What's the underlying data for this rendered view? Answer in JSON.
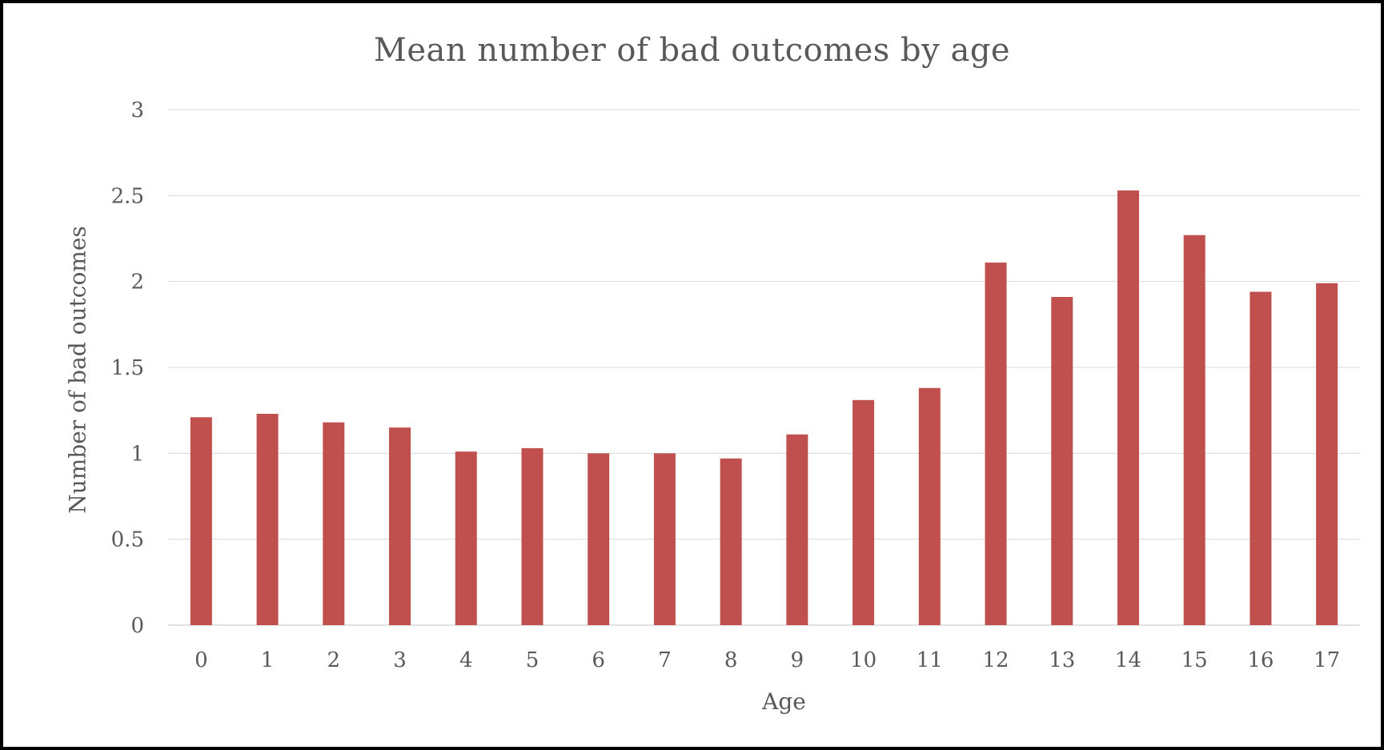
{
  "chart_data": {
    "type": "bar",
    "title": "Mean number of bad outcomes by age",
    "xlabel": "Age",
    "ylabel": "Number of bad outcomes",
    "categories": [
      "0",
      "1",
      "2",
      "3",
      "4",
      "5",
      "6",
      "7",
      "8",
      "9",
      "10",
      "11",
      "12",
      "13",
      "14",
      "15",
      "16",
      "17"
    ],
    "values": [
      1.21,
      1.23,
      1.18,
      1.15,
      1.01,
      1.03,
      1.0,
      1.0,
      0.97,
      1.11,
      1.31,
      1.38,
      2.11,
      1.91,
      2.53,
      2.27,
      1.94,
      1.99
    ],
    "yticks": [
      "0",
      "0.5",
      "1",
      "1.5",
      "2",
      "2.5",
      "3"
    ],
    "ylim": [
      0,
      3
    ],
    "grid": true,
    "legend": "none",
    "colors": {
      "bar": "#c0504d",
      "grid": "#d9d9d9",
      "text": "#595959"
    }
  }
}
